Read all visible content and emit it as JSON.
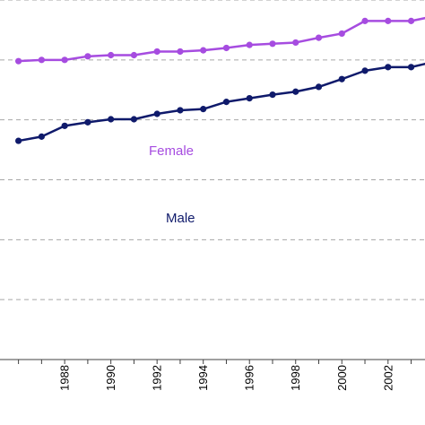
{
  "chart_data": {
    "type": "line",
    "title": "",
    "xlabel": "",
    "ylabel": "",
    "grid": true,
    "x": [
      1986,
      1987,
      1988,
      1989,
      1990,
      1991,
      1992,
      1993,
      1994,
      1995,
      1996,
      1997,
      1998,
      1999,
      2000,
      2001,
      2002,
      2003,
      2004
    ],
    "xlim": [
      1985.2,
      2003.6
    ],
    "ylim": [
      0,
      6
    ],
    "x_tick_labels": [
      "1988",
      "1990",
      "1992",
      "1994",
      "1996",
      "1998",
      "2000",
      "2002"
    ],
    "series": [
      {
        "name": "Female",
        "color": "#a64ce0",
        "values": [
          4.98,
          5.0,
          5.0,
          5.06,
          5.08,
          5.08,
          5.14,
          5.14,
          5.16,
          5.2,
          5.25,
          5.27,
          5.29,
          5.37,
          5.44,
          5.65,
          5.65,
          5.65,
          5.73
        ]
      },
      {
        "name": "Male",
        "color": "#0f1a6b",
        "values": [
          3.65,
          3.72,
          3.9,
          3.96,
          4.01,
          4.01,
          4.1,
          4.16,
          4.18,
          4.3,
          4.36,
          4.42,
          4.47,
          4.55,
          4.68,
          4.82,
          4.88,
          4.88,
          4.97
        ]
      }
    ]
  }
}
